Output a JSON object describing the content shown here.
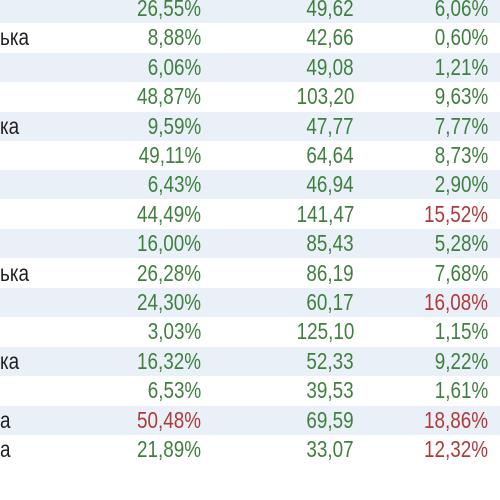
{
  "colors": {
    "positive": "#3f7f3f",
    "negative": "#b03a3a",
    "row_alt": "#e9f0f8"
  },
  "rows": [
    {
      "name": "",
      "c1": "26,55%",
      "c2": "49,62",
      "c3": "6,06%",
      "c1_red": false,
      "c3_red": false
    },
    {
      "name": "ька",
      "c1": "8,88%",
      "c2": "42,66",
      "c3": "0,60%",
      "c1_red": false,
      "c3_red": false
    },
    {
      "name": "",
      "c1": "6,06%",
      "c2": "49,08",
      "c3": "1,21%",
      "c1_red": false,
      "c3_red": false
    },
    {
      "name": "",
      "c1": "48,87%",
      "c2": "103,20",
      "c3": "9,63%",
      "c1_red": false,
      "c3_red": false
    },
    {
      "name": "ка",
      "c1": "9,59%",
      "c2": "47,77",
      "c3": "7,77%",
      "c1_red": false,
      "c3_red": false
    },
    {
      "name": "",
      "c1": "49,11%",
      "c2": "64,64",
      "c3": "8,73%",
      "c1_red": false,
      "c3_red": false
    },
    {
      "name": "",
      "c1": "6,43%",
      "c2": "46,94",
      "c3": "2,90%",
      "c1_red": false,
      "c3_red": false
    },
    {
      "name": "",
      "c1": "44,49%",
      "c2": "141,47",
      "c3": "15,52%",
      "c1_red": false,
      "c3_red": true
    },
    {
      "name": "",
      "c1": "16,00%",
      "c2": "85,43",
      "c3": "5,28%",
      "c1_red": false,
      "c3_red": false
    },
    {
      "name": "ька",
      "c1": "26,28%",
      "c2": "86,19",
      "c3": "7,68%",
      "c1_red": false,
      "c3_red": false
    },
    {
      "name": "",
      "c1": "24,30%",
      "c2": "60,17",
      "c3": "16,08%",
      "c1_red": false,
      "c3_red": true
    },
    {
      "name": "",
      "c1": "3,03%",
      "c2": "125,10",
      "c3": "1,15%",
      "c1_red": false,
      "c3_red": false
    },
    {
      "name": "ка",
      "c1": "16,32%",
      "c2": "52,33",
      "c3": "9,22%",
      "c1_red": false,
      "c3_red": false
    },
    {
      "name": "",
      "c1": "6,53%",
      "c2": "39,53",
      "c3": "1,61%",
      "c1_red": false,
      "c3_red": false
    },
    {
      "name": "а",
      "c1": "50,48%",
      "c2": "69,59",
      "c3": "18,86%",
      "c1_red": true,
      "c3_red": true
    },
    {
      "name": "а",
      "c1": "21,89%",
      "c2": "33,07",
      "c3": "12,32%",
      "c1_red": false,
      "c3_red": true
    }
  ]
}
